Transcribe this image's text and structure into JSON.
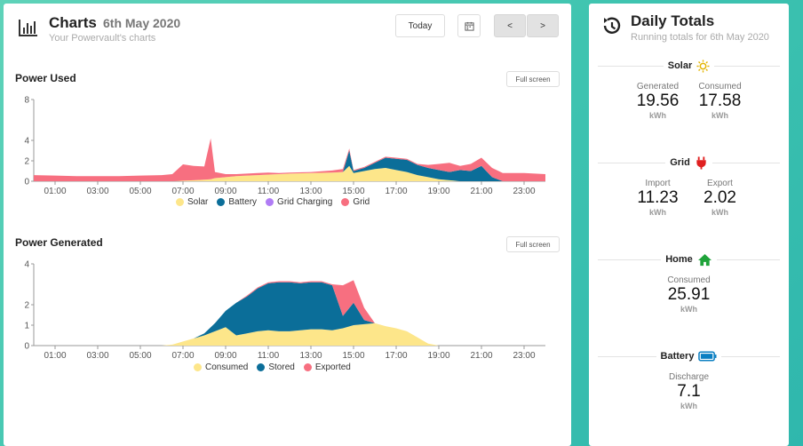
{
  "charts_panel": {
    "title": "Charts",
    "date": "6th May 2020",
    "subtitle": "Your Powervault's charts",
    "today_label": "Today",
    "prev_label": "<",
    "next_label": ">"
  },
  "power_used": {
    "title": "Power Used",
    "fullscreen_label": "Full screen",
    "legend": [
      {
        "name": "Solar",
        "color": "#fde68a"
      },
      {
        "name": "Battery",
        "color": "#0b6e99"
      },
      {
        "name": "Grid Charging",
        "color": "#b07cf5"
      },
      {
        "name": "Grid",
        "color": "#f76f80"
      }
    ]
  },
  "power_generated": {
    "title": "Power Generated",
    "fullscreen_label": "Full screen",
    "legend": [
      {
        "name": "Consumed",
        "color": "#fde68a"
      },
      {
        "name": "Stored",
        "color": "#0b6e99"
      },
      {
        "name": "Exported",
        "color": "#f76f80"
      }
    ]
  },
  "chart_data": [
    {
      "type": "area",
      "title": "Power Used",
      "x_ticks": [
        "01:00",
        "03:00",
        "05:00",
        "07:00",
        "09:00",
        "11:00",
        "13:00",
        "15:00",
        "17:00",
        "19:00",
        "21:00",
        "23:00"
      ],
      "y_ticks": [
        0,
        2,
        4,
        8
      ],
      "ylim": [
        0,
        8
      ],
      "x": [
        0,
        1,
        2,
        3,
        4,
        5,
        6,
        6.5,
        7,
        7.5,
        8,
        8.3,
        8.5,
        9,
        9.5,
        10,
        10.5,
        11,
        11.5,
        12,
        13,
        14,
        14.5,
        14.8,
        15,
        15.5,
        16,
        16.5,
        17,
        17.5,
        18,
        18.5,
        19,
        19.5,
        20,
        20.5,
        21,
        21.5,
        22,
        23,
        24
      ],
      "series": [
        {
          "name": "Solar",
          "values": [
            0,
            0,
            0,
            0,
            0,
            0,
            0,
            0,
            0.05,
            0.1,
            0.15,
            0.2,
            0.3,
            0.4,
            0.5,
            0.55,
            0.6,
            0.65,
            0.7,
            0.75,
            0.8,
            0.85,
            0.9,
            1.5,
            0.8,
            1.0,
            1.2,
            1.3,
            1.1,
            0.9,
            0.6,
            0.4,
            0.2,
            0.1,
            0,
            0,
            0,
            0,
            0,
            0,
            0
          ]
        },
        {
          "name": "Battery",
          "values": [
            0,
            0,
            0,
            0,
            0,
            0,
            0,
            0,
            0,
            0,
            0,
            0,
            0,
            0,
            0,
            0,
            0,
            0,
            0,
            0,
            0,
            0,
            0,
            1.5,
            0.2,
            0.3,
            0.6,
            1.0,
            1.1,
            1.2,
            1.0,
            0.9,
            0.9,
            0.8,
            1.1,
            1.0,
            1.5,
            0.4,
            0,
            0,
            0
          ]
        },
        {
          "name": "Grid Charging",
          "values": [
            0,
            0,
            0,
            0,
            0,
            0,
            0,
            0,
            0,
            0,
            0,
            0,
            0,
            0,
            0,
            0,
            0,
            0,
            0,
            0,
            0,
            0,
            0,
            0,
            0,
            0,
            0,
            0,
            0,
            0,
            0,
            0,
            0,
            0,
            0,
            0,
            0,
            0,
            0,
            0,
            0
          ]
        },
        {
          "name": "Grid",
          "values": [
            0.6,
            0.55,
            0.5,
            0.5,
            0.5,
            0.55,
            0.6,
            0.7,
            1.6,
            1.4,
            1.3,
            4.0,
            0.6,
            0.3,
            0.2,
            0.2,
            0.2,
            0.2,
            0.1,
            0.1,
            0.1,
            0.2,
            0.3,
            0.2,
            0.1,
            0.1,
            0.1,
            0.1,
            0.1,
            0.1,
            0.1,
            0.3,
            0.6,
            0.9,
            0.4,
            0.7,
            0.8,
            0.9,
            0.8,
            0.8,
            0.7
          ]
        }
      ]
    },
    {
      "type": "area",
      "title": "Power Generated",
      "x_ticks": [
        "01:00",
        "03:00",
        "05:00",
        "07:00",
        "09:00",
        "11:00",
        "13:00",
        "15:00",
        "17:00",
        "19:00",
        "21:00",
        "23:00"
      ],
      "y_ticks": [
        0,
        1,
        2,
        4
      ],
      "ylim": [
        0,
        4
      ],
      "x": [
        0,
        1,
        2,
        3,
        4,
        5,
        6,
        6.5,
        7,
        7.5,
        8,
        8.5,
        9,
        9.5,
        10,
        10.5,
        11,
        11.5,
        12,
        12.5,
        13,
        13.5,
        14,
        14.5,
        15,
        15.5,
        16,
        16.5,
        17,
        17.5,
        18,
        18.5,
        19,
        20,
        21,
        22,
        23,
        24
      ],
      "series": [
        {
          "name": "Consumed",
          "values": [
            0,
            0,
            0,
            0,
            0,
            0,
            0,
            0.05,
            0.2,
            0.35,
            0.5,
            0.7,
            0.9,
            0.5,
            0.6,
            0.7,
            0.75,
            0.7,
            0.7,
            0.75,
            0.8,
            0.8,
            0.75,
            0.85,
            1.0,
            1.05,
            1.1,
            0.95,
            0.85,
            0.7,
            0.4,
            0.1,
            0,
            0,
            0,
            0,
            0,
            0
          ]
        },
        {
          "name": "Stored",
          "values": [
            0,
            0,
            0,
            0,
            0,
            0,
            0,
            0,
            0,
            0,
            0.1,
            0.4,
            0.8,
            1.6,
            1.8,
            2.1,
            2.3,
            2.4,
            2.4,
            2.3,
            2.3,
            2.3,
            2.2,
            0.6,
            1.1,
            0.2,
            0,
            0,
            0,
            0,
            0,
            0,
            0,
            0,
            0,
            0,
            0,
            0
          ]
        },
        {
          "name": "Exported",
          "values": [
            0,
            0,
            0,
            0,
            0,
            0,
            0,
            0,
            0,
            0,
            0,
            0,
            0,
            0,
            0.05,
            0.05,
            0.05,
            0.05,
            0.05,
            0.05,
            0.05,
            0.05,
            0.05,
            1.5,
            1.1,
            0.6,
            0,
            0,
            0,
            0,
            0,
            0,
            0,
            0,
            0,
            0,
            0,
            0
          ]
        }
      ]
    }
  ],
  "daily_totals": {
    "title": "Daily Totals",
    "subtitle": "Running totals for 6th May 2020",
    "solar": {
      "label": "Solar",
      "generated_label": "Generated",
      "generated": "19.56",
      "consumed_label": "Consumed",
      "consumed": "17.58",
      "unit": "kWh"
    },
    "grid": {
      "label": "Grid",
      "import_label": "Import",
      "import": "11.23",
      "export_label": "Export",
      "export": "2.02",
      "unit": "kWh"
    },
    "home": {
      "label": "Home",
      "consumed_label": "Consumed",
      "consumed": "25.91",
      "unit": "kWh"
    },
    "battery": {
      "label": "Battery",
      "discharge_label": "Discharge",
      "discharge": "7.1",
      "unit": "kWh"
    }
  }
}
